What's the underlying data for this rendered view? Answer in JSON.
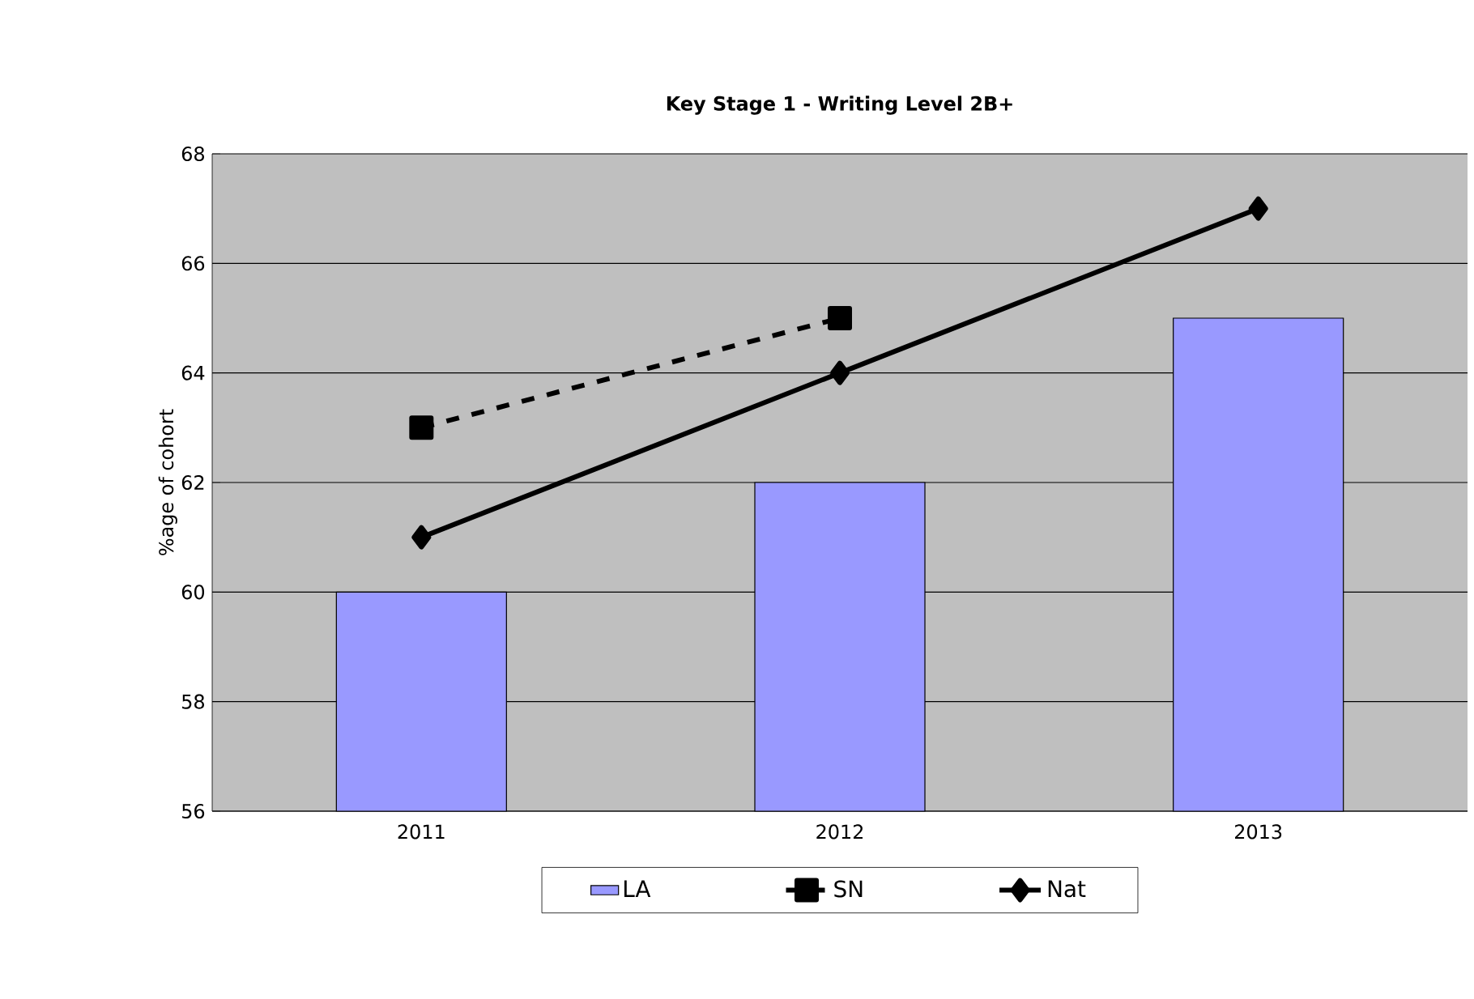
{
  "chart_data": {
    "type": "bar",
    "title": "Key Stage 1 - Writing Level 2B+",
    "ylabel": "%age of cohort",
    "categories": [
      "2011",
      "2012",
      "2013"
    ],
    "series": [
      {
        "name": "LA",
        "color": "#9999ff",
        "values": [
          60,
          62,
          65
        ]
      },
      {
        "name": "SN",
        "type": "line",
        "color": "#000000",
        "marker": "square",
        "line_style": "dashed",
        "values": [
          63,
          65,
          null
        ]
      },
      {
        "name": "Nat",
        "type": "line",
        "color": "#000000",
        "marker": "diamond",
        "line_style": "solid",
        "values": [
          61,
          64,
          67
        ]
      }
    ],
    "ylim": [
      56,
      68
    ],
    "yticks": [
      56,
      58,
      60,
      62,
      64,
      66,
      68
    ],
    "grid": "y",
    "legend": "bottom"
  }
}
